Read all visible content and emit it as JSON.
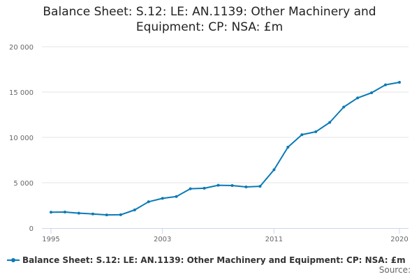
{
  "chart_data": {
    "type": "line",
    "title": "Balance Sheet: S.12: LE: AN.1139: Other Machinery and Equipment: CP: NSA: £m",
    "title_lines": [
      "Balance Sheet: S.12: LE: AN.1139: Other Machinery and",
      "Equipment: CP: NSA: £m"
    ],
    "xlabel": "",
    "ylabel": "",
    "x": [
      1995,
      1996,
      1997,
      1998,
      1999,
      2000,
      2001,
      2002,
      2003,
      2004,
      2005,
      2006,
      2007,
      2008,
      2009,
      2010,
      2011,
      2012,
      2013,
      2014,
      2015,
      2016,
      2017,
      2018,
      2019,
      2020
    ],
    "x_ticks": [
      "1995",
      "2003",
      "2011",
      "2020"
    ],
    "x_tick_values": [
      1995,
      2003,
      2011,
      2020
    ],
    "y_ticks": [
      "0",
      "5 000",
      "10 000",
      "15 000",
      "20 000"
    ],
    "y_tick_values": [
      0,
      5000,
      10000,
      15000,
      20000
    ],
    "xlim": [
      1995,
      2020
    ],
    "ylim": [
      0,
      20000
    ],
    "grid": "horizontal",
    "legend_position": "bottom",
    "series": [
      {
        "name": "Balance Sheet: S.12: LE: AN.1139: Other Machinery and Equipment: CP: NSA: £m",
        "color": "#0a7ab6",
        "values": [
          1750,
          1770,
          1650,
          1560,
          1450,
          1470,
          2000,
          2900,
          3280,
          3480,
          4340,
          4390,
          4720,
          4690,
          4540,
          4610,
          6430,
          8920,
          10300,
          10620,
          11650,
          13350,
          14350,
          14920,
          15800,
          16080
        ]
      }
    ]
  },
  "credits": "Source:"
}
